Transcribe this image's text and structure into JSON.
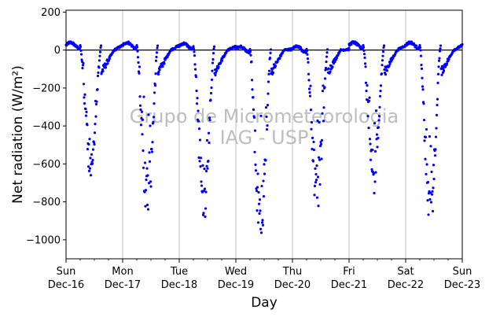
{
  "chart_data": {
    "type": "scatter",
    "xlabel": "Day",
    "ylabel": "Net radiation (W/m²)",
    "ylim": [
      -1100,
      210
    ],
    "xlim": [
      "2018-12-16",
      "2018-12-23"
    ],
    "yticks": [
      200,
      0,
      -200,
      -400,
      -600,
      -800,
      -1000
    ],
    "ytick_labels": [
      "200",
      "0",
      "−200",
      "−400",
      "−600",
      "−800",
      "−1000"
    ],
    "xticks": [
      {
        "day": "Sun",
        "date": "Dec-16"
      },
      {
        "day": "Mon",
        "date": "Dec-17"
      },
      {
        "day": "Tue",
        "date": "Dec-18"
      },
      {
        "day": "Wed",
        "date": "Dec-19"
      },
      {
        "day": "Thu",
        "date": "Dec-20"
      },
      {
        "day": "Fri",
        "date": "Dec-21"
      },
      {
        "day": "Sat",
        "date": "Dec-22"
      },
      {
        "day": "Sun",
        "date": "Dec-23"
      }
    ],
    "grid": "vertical lines at day ticks",
    "zero_line": true,
    "watermark": [
      "Grupo de Micrometeorologia",
      "IAG - USP"
    ],
    "series": [
      {
        "color": "#0000ff",
        "daily_cycle": [
          {
            "day_start": "2018-12-16",
            "day_value_min": 25,
            "night_peak": -640
          },
          {
            "day_start": "2018-12-17",
            "day_value_min": 25,
            "night_peak": -860
          },
          {
            "day_start": "2018-12-18",
            "day_value_min": 20,
            "night_peak": -820
          },
          {
            "day_start": "2018-12-19",
            "day_value_min": 5,
            "night_peak": -980
          },
          {
            "day_start": "2018-12-20",
            "day_value_min": 5,
            "night_peak": -810
          },
          {
            "day_start": "2018-12-21",
            "day_value_min": 25,
            "night_peak": -700
          },
          {
            "day_start": "2018-12-22",
            "day_value_min": 25,
            "night_peak": -880
          }
        ]
      }
    ]
  }
}
